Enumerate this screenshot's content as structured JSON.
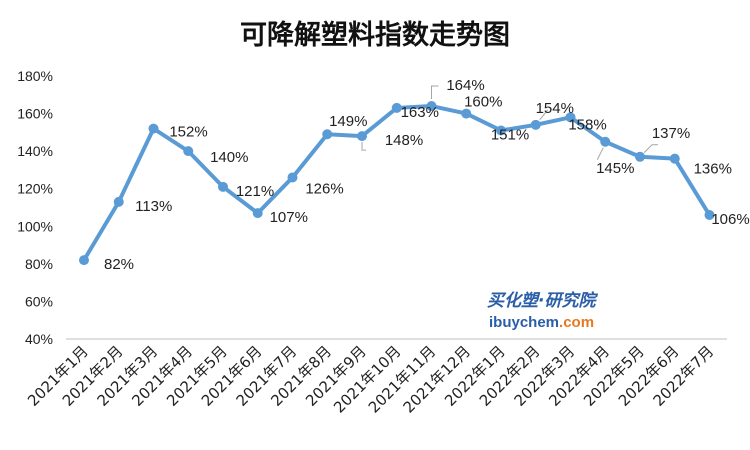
{
  "chart_data": {
    "type": "line",
    "title": "可降解塑料指数走势图",
    "categories": [
      "2021年1月",
      "2021年2月",
      "2021年3月",
      "2021年4月",
      "2021年5月",
      "2021年6月",
      "2021年7月",
      "2021年8月",
      "2021年9月",
      "2021年10月",
      "2021年11月",
      "2021年12月",
      "2022年1月",
      "2022年2月",
      "2022年3月",
      "2022年4月",
      "2022年5月",
      "2022年6月",
      "2022年7月"
    ],
    "values": [
      82,
      113,
      152,
      140,
      121,
      107,
      126,
      149,
      148,
      163,
      164,
      160,
      151,
      154,
      158,
      145,
      137,
      136,
      106
    ],
    "data_labels": [
      "82%",
      "113%",
      "152%",
      "140%",
      "121%",
      "107%",
      "126%",
      "149%",
      "148%",
      "163%",
      "164%",
      "160%",
      "151%",
      "154%",
      "158%",
      "145%",
      "137%",
      "136%",
      "106%"
    ],
    "y_tick_labels": [
      "40%",
      "60%",
      "80%",
      "100%",
      "120%",
      "140%",
      "160%",
      "180%"
    ],
    "ylim": [
      40,
      180
    ],
    "y_unit": "%",
    "grid": false,
    "legend": "none",
    "line_color": "#5b9bd5"
  },
  "watermark": {
    "cn": "买化塑·研究院",
    "domain_main": "ibuychem",
    "domain_suffix": ".com",
    "color": "#2a5ea8",
    "suffix_color": "#e87722"
  }
}
